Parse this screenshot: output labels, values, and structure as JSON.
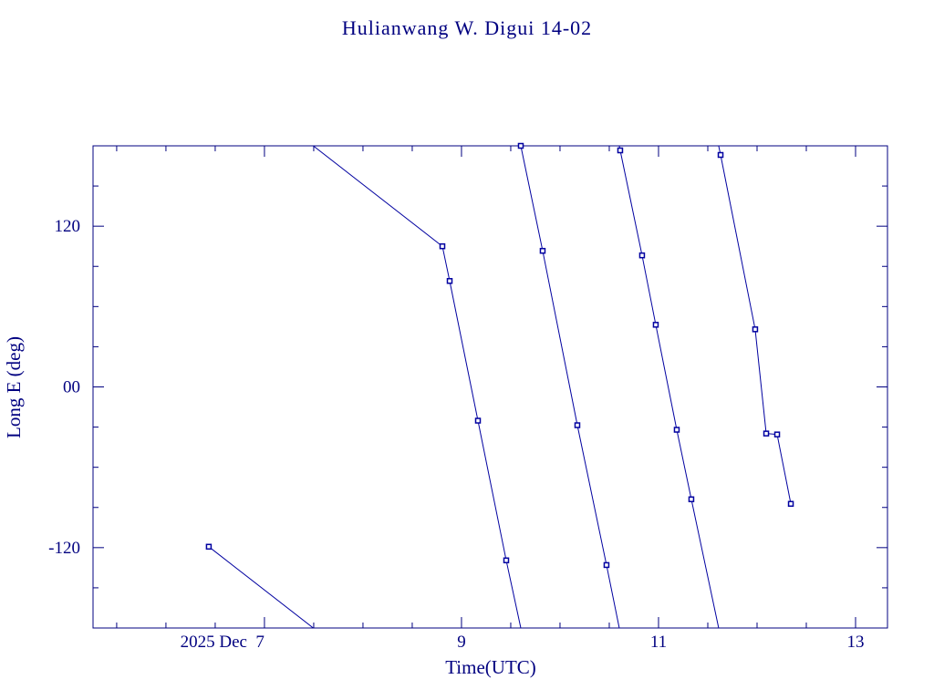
{
  "chart_data": {
    "type": "line",
    "title": "Hulianwang W. Digui 14-02",
    "xlabel": "Time(UTC)",
    "ylabel": "Long E (deg)",
    "x": [
      6.435,
      8.806,
      8.88,
      9.167,
      9.454,
      9.602,
      9.824,
      10.176,
      10.472,
      10.611,
      10.833,
      10.972,
      11.185,
      11.333,
      11.63,
      11.981,
      12.093,
      12.204,
      12.343
    ],
    "series": [
      {
        "color": "#0000a0",
        "values": [
          -119.3,
          105,
          79.1,
          -25.2,
          -129.5,
          180,
          101.6,
          -28.6,
          -133,
          176.6,
          98.2,
          46.4,
          -32,
          -83.9,
          173.2,
          43,
          -34.8,
          -35.5,
          -87.3
        ]
      }
    ],
    "xlim": [
      5.26,
      13.324
    ],
    "ylim": [
      -180,
      180
    ],
    "xticks": [
      {
        "value": 7,
        "label": "2025 Dec  7"
      },
      9,
      11,
      13
    ],
    "xminorticks": [
      5.5,
      6,
      6.5,
      7.5,
      8,
      8.5,
      9.5,
      10,
      10.5,
      11.5,
      12,
      12.5,
      13
    ],
    "yticks": [
      -120,
      {
        "value": 0,
        "label": "00"
      },
      120
    ],
    "yminorticks": [
      -150,
      -90,
      -60,
      -30,
      30,
      60,
      90,
      150
    ],
    "axis_color": "#000080"
  }
}
